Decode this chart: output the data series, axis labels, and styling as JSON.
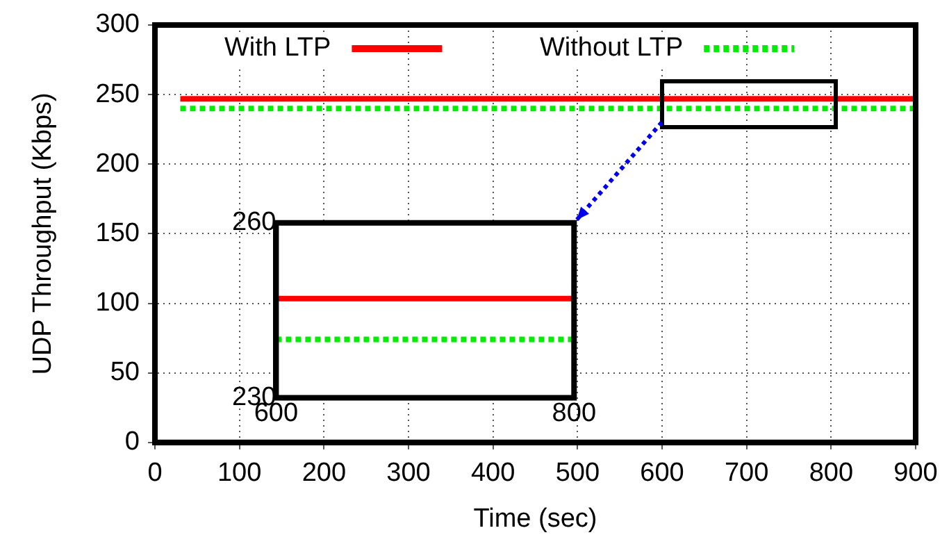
{
  "chart_data": [
    {
      "type": "line",
      "xlabel": "Time (sec)",
      "ylabel": "UDP Throughput (Kbps)",
      "xlim": [
        0,
        900
      ],
      "xticks": [
        0,
        100,
        200,
        300,
        400,
        500,
        600,
        700,
        800,
        900
      ],
      "ylim": [
        0,
        300
      ],
      "yticks": [
        0,
        50,
        100,
        150,
        200,
        250,
        300
      ],
      "grid": true,
      "legend": "top",
      "marker": "none",
      "series": [
        {
          "name": "With LTP",
          "color": "#ff0000",
          "line_style": "solid",
          "x": [
            30,
            900
          ],
          "values": [
            247,
            247
          ]
        },
        {
          "name": "Without LTP",
          "color": "#00ee00",
          "line_style": "dotted",
          "x": [
            30,
            900
          ],
          "values": [
            240,
            240
          ]
        }
      ]
    },
    {
      "type": "line",
      "xlim": [
        600,
        800
      ],
      "xticks": [
        600,
        800
      ],
      "ylim": [
        230,
        260
      ],
      "yticks": [
        230,
        260
      ],
      "grid": false,
      "legend": false,
      "marker": "none",
      "series": [
        {
          "color": "#ff0000",
          "line_style": "solid",
          "x": [
            600,
            800
          ],
          "values": [
            247,
            247
          ]
        },
        {
          "color": "#00ee00",
          "line_style": "dotted",
          "x": [
            600,
            800
          ],
          "values": [
            240,
            240
          ]
        }
      ]
    }
  ]
}
